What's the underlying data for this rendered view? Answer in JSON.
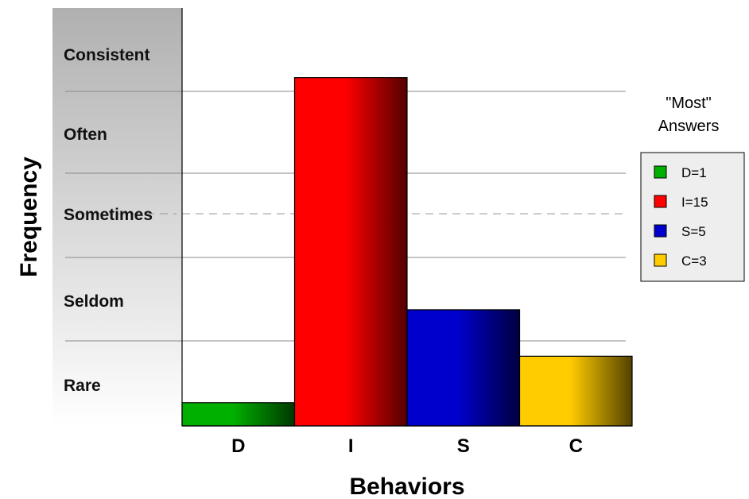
{
  "chart_data": {
    "type": "bar",
    "xlabel": "Behaviors",
    "ylabel": "Frequency",
    "categories": [
      "D",
      "I",
      "S",
      "C"
    ],
    "values": [
      1,
      15,
      5,
      3
    ],
    "frequency_bands": [
      "Rare",
      "Seldom",
      "Sometimes",
      "Often",
      "Consistent"
    ],
    "legend": {
      "title_line1": "\"Most\"",
      "title_line2": "Answers",
      "entries": [
        "D=1",
        "I=15",
        "S=5",
        "C=3"
      ],
      "position": "right"
    },
    "colors": [
      "#00b000",
      "#ff0000",
      "#0000cc",
      "#ffcc00"
    ],
    "ylim": [
      0,
      18
    ]
  }
}
